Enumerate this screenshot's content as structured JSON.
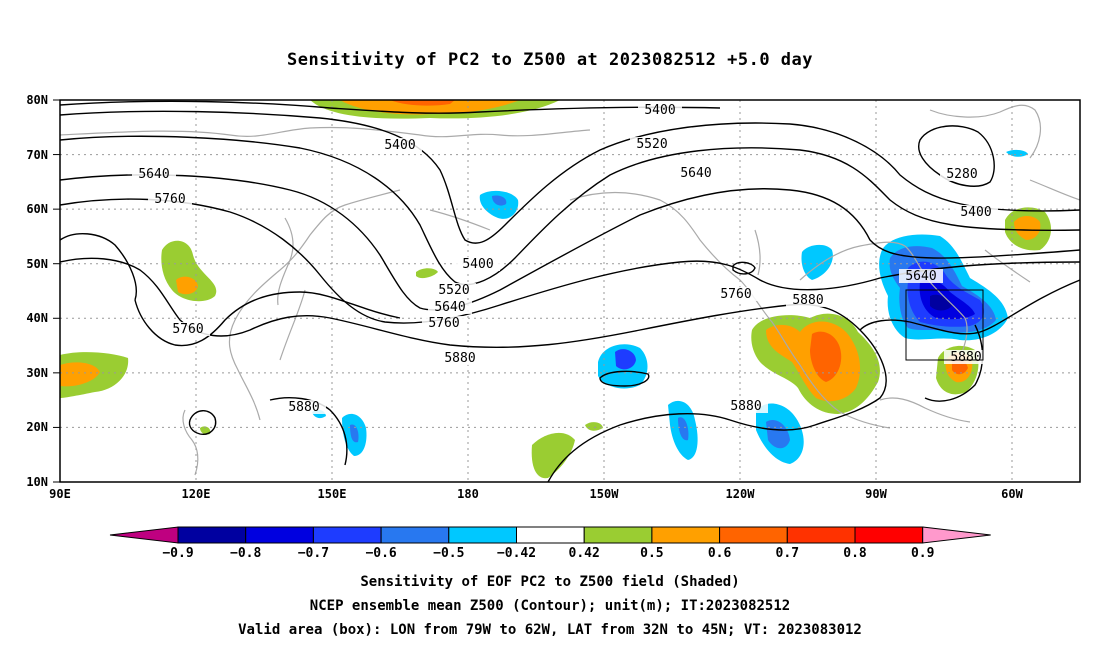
{
  "title": "Sensitivity of PC2 to Z500 at 2023082512 +5.0 day",
  "map": {
    "lat_labels": [
      "80N",
      "70N",
      "60N",
      "50N",
      "40N",
      "30N",
      "20N",
      "10N"
    ],
    "lon_labels": [
      "90E",
      "120E",
      "150E",
      "180",
      "150W",
      "120W",
      "90W",
      "60W"
    ],
    "contour_labels": [
      "5400",
      "5400",
      "5400",
      "5400",
      "5520",
      "5520",
      "5640",
      "5640",
      "5640",
      "5640",
      "5760",
      "5760",
      "5760",
      "5760",
      "5880",
      "5880",
      "5880",
      "5880",
      "5880",
      "5280"
    ],
    "valid_box": {
      "lon_from": "79W",
      "lon_to": "62W",
      "lat_from": "32N",
      "lat_to": "45N"
    }
  },
  "colorbar": {
    "labels": [
      "-0.9",
      "-0.8",
      "-0.7",
      "-0.6",
      "-0.5",
      "-0.42",
      "0.42",
      "0.5",
      "0.6",
      "0.7",
      "0.8",
      "0.9"
    ],
    "colors": [
      "#bf0080",
      "#0000a0",
      "#0000e0",
      "#1e3cff",
      "#2878f0",
      "#00c8ff",
      "#ffffff",
      "#9acd32",
      "#ffa000",
      "#ff6400",
      "#ff3200",
      "#ff0000",
      "#ff99cc"
    ]
  },
  "footer": {
    "line1": "Sensitivity of EOF PC2 to Z500 field (Shaded)",
    "line2": "NCEP ensemble mean Z500 (Contour); unit(m); IT:2023082512",
    "line3": "Valid area (box): LON from 79W to 62W, LAT from 32N to 45N; VT: 2023083012"
  }
}
